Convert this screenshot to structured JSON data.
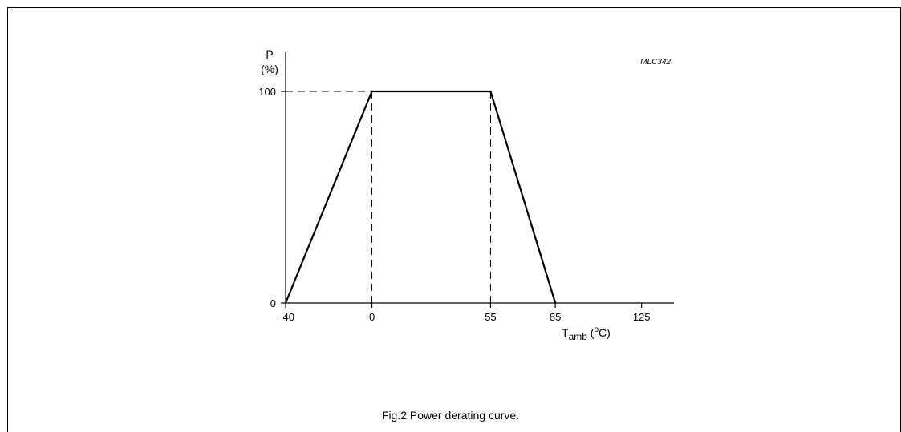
{
  "chart_data": {
    "type": "line",
    "code": "MLC342",
    "caption": "Fig.2  Power derating curve.",
    "ylabel": {
      "line1": "P",
      "line2": "(%)"
    },
    "xlabel": {
      "main": "T",
      "sub": "amb",
      "pre": " (",
      "sup": "o",
      "unit": "C)"
    },
    "xlim": [
      -40,
      140
    ],
    "ylim": [
      0,
      100
    ],
    "x_ticks": [
      -40,
      0,
      55,
      85,
      125
    ],
    "x_tick_labels": [
      "−40",
      "0",
      "55",
      "85",
      "125"
    ],
    "y_ticks": [
      0,
      100
    ],
    "y_tick_labels": [
      "0",
      "100"
    ],
    "grid": false,
    "series": [
      {
        "points": [
          {
            "x": -40,
            "y": 0
          },
          {
            "x": 0,
            "y": 100
          },
          {
            "x": 55,
            "y": 100
          },
          {
            "x": 85,
            "y": 0
          }
        ]
      }
    ],
    "reference_lines": [
      {
        "kind": "horizontal",
        "y": 100,
        "x_from": -40,
        "x_to": 0
      },
      {
        "kind": "vertical",
        "x": 0,
        "y_from": 0,
        "y_to": 100
      },
      {
        "kind": "vertical",
        "x": 55,
        "y_from": 0,
        "y_to": 100
      }
    ]
  }
}
